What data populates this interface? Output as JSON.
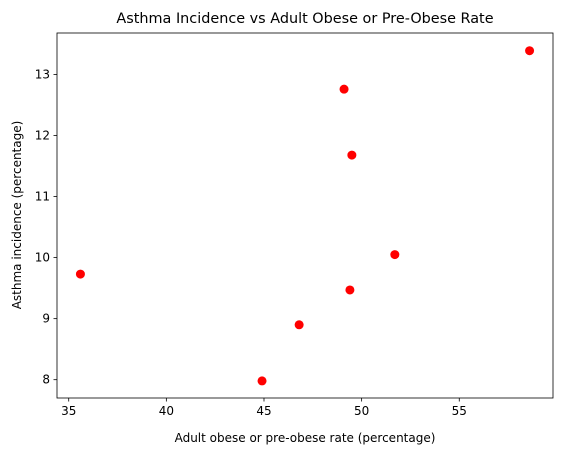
{
  "chart_data": {
    "type": "scatter",
    "title": "Asthma Incidence vs Adult Obese or Pre-Obese Rate",
    "xlabel": "Adult obese or pre-obese rate (percentage)",
    "ylabel": "Asthma incidence (percentage)",
    "xlim": [
      34.4,
      59.8
    ],
    "ylim": [
      7.7,
      13.68
    ],
    "xticks": [
      35,
      40,
      45,
      50,
      55
    ],
    "yticks": [
      8,
      9,
      10,
      11,
      12,
      13
    ],
    "xtick_labels": [
      "35",
      "40",
      "45",
      "50",
      "55"
    ],
    "ytick_labels": [
      "8",
      "9",
      "10",
      "11",
      "12",
      "13"
    ],
    "grid": false,
    "marker_color": "#ff0000",
    "points": [
      {
        "x": 35.6,
        "y": 9.73
      },
      {
        "x": 44.9,
        "y": 7.98
      },
      {
        "x": 46.8,
        "y": 8.9
      },
      {
        "x": 49.1,
        "y": 12.76
      },
      {
        "x": 49.4,
        "y": 9.47
      },
      {
        "x": 49.5,
        "y": 11.68
      },
      {
        "x": 51.7,
        "y": 10.05
      },
      {
        "x": 58.6,
        "y": 13.39
      }
    ]
  }
}
